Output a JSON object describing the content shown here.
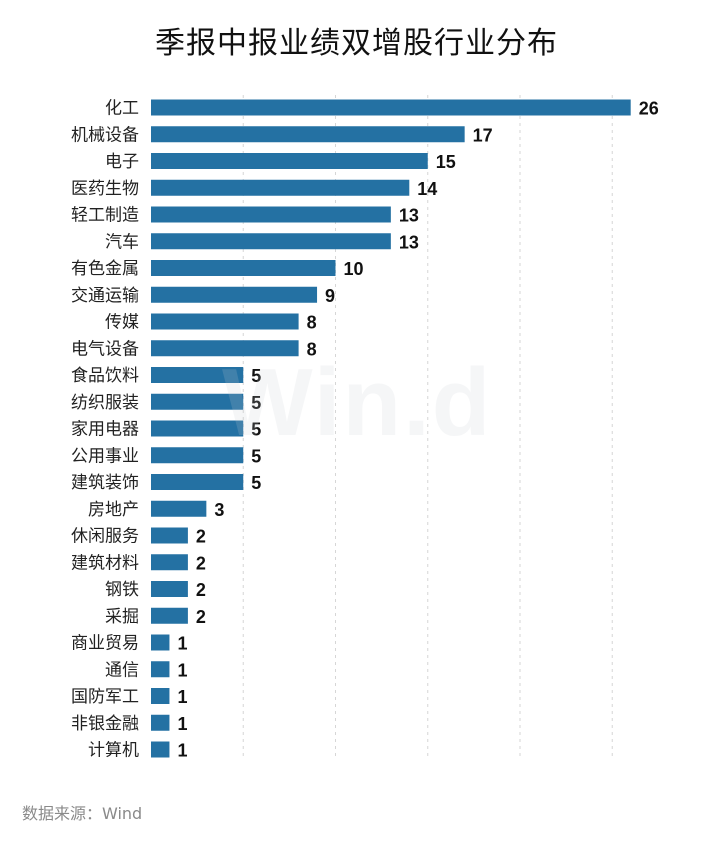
{
  "title": "季报中报业绩双增股行业分布",
  "watermark": "Win.d",
  "source": "数据来源：Wind",
  "chart_data": {
    "type": "bar",
    "orientation": "horizontal",
    "title": "季报中报业绩双增股行业分布",
    "categories": [
      "化工",
      "机械设备",
      "电子",
      "医药生物",
      "轻工制造",
      "汽车",
      "有色金属",
      "交通运输",
      "传媒",
      "电气设备",
      "食品饮料",
      "纺织服装",
      "家用电器",
      "公用事业",
      "建筑装饰",
      "房地产",
      "休闲服务",
      "建筑材料",
      "钢铁",
      "采掘",
      "商业贸易",
      "通信",
      "国防军工",
      "非银金融",
      "计算机"
    ],
    "values": [
      26,
      17,
      15,
      14,
      13,
      13,
      10,
      9,
      8,
      8,
      5,
      5,
      5,
      5,
      5,
      3,
      2,
      2,
      2,
      2,
      1,
      1,
      1,
      1,
      1
    ],
    "xlim": [
      0,
      26
    ],
    "grid": "vertical dashed",
    "bar_color": "#2471a3",
    "data_labels": true
  }
}
